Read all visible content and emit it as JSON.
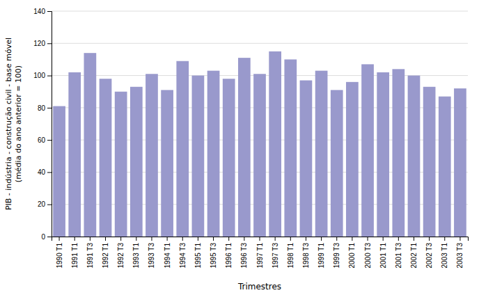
{
  "chart_data": {
    "type": "bar",
    "categories": [
      "1990 T1",
      "1991 T1",
      "1991 T3",
      "1992 T1",
      "1992 T3",
      "1993 T1",
      "1993 T3",
      "1994 T1",
      "1994 T3",
      "1995 T1",
      "1995 T3",
      "1996 T1",
      "1996 T3",
      "1997 T1",
      "1997 T3",
      "1998 T1",
      "1998 T3",
      "1999 T1",
      "1999 T3",
      "2000 T1",
      "2000 T3",
      "2001 T1",
      "2001 T3",
      "2002 T1",
      "2002 T3",
      "2003 T1",
      "2003 T3"
    ],
    "values": [
      81,
      102,
      114,
      98,
      90,
      93,
      101,
      91,
      109,
      100,
      103,
      98,
      111,
      101,
      115,
      110,
      97,
      103,
      91,
      96,
      107,
      102,
      104,
      100,
      93,
      87,
      92
    ],
    "color": "#9999cc",
    "xlabel": "Trimestres",
    "ylabel": "PIB - indústria - construção civil - base móvel\n(média do ano anterior = 100)",
    "ylim": [
      0,
      140
    ],
    "yticks": [
      0,
      20,
      40,
      60,
      80,
      100,
      120,
      140
    ],
    "grid": true
  }
}
